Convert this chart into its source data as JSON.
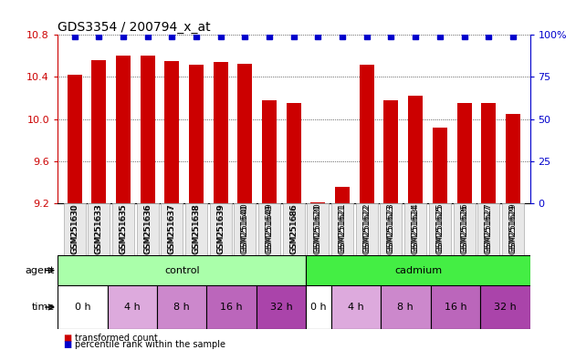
{
  "title": "GDS3354 / 200794_x_at",
  "samples": [
    "GSM251630",
    "GSM251633",
    "GSM251635",
    "GSM251636",
    "GSM251637",
    "GSM251638",
    "GSM251639",
    "GSM251640",
    "GSM251649",
    "GSM251686",
    "GSM251620",
    "GSM251621",
    "GSM251622",
    "GSM251623",
    "GSM251624",
    "GSM251625",
    "GSM251626",
    "GSM251627",
    "GSM251629"
  ],
  "bar_values": [
    10.42,
    10.56,
    10.6,
    10.6,
    10.55,
    10.52,
    10.54,
    10.53,
    10.18,
    10.15,
    9.21,
    9.35,
    10.52,
    10.18,
    10.22,
    9.92,
    10.15,
    10.15,
    10.05
  ],
  "bar_color": "#cc0000",
  "percentile_color": "#0000cc",
  "ymin": 9.2,
  "ymax": 10.8,
  "yticks": [
    9.2,
    9.6,
    10.0,
    10.4,
    10.8
  ],
  "yright_ticks": [
    0,
    25,
    50,
    75,
    100
  ],
  "agent_control_label": "control",
  "agent_cadmium_label": "cadmium",
  "agent_row_label": "agent",
  "time_row_label": "time",
  "control_color": "#aaffaa",
  "cadmium_color": "#44ee44",
  "ctrl_time_widths": [
    2,
    2,
    2,
    2,
    2
  ],
  "cad_time_widths": [
    1,
    2,
    2,
    2,
    2
  ],
  "time_colors": [
    "#ffffff",
    "#ddaadd",
    "#cc88cc",
    "#bb66bb",
    "#aa44aa"
  ],
  "time_labels_control": [
    "0 h",
    "4 h",
    "8 h",
    "16 h",
    "32 h"
  ],
  "time_labels_cadmium": [
    "0 h",
    "4 h",
    "8 h",
    "16 h",
    "32 h"
  ],
  "control_sample_count": 10,
  "cadmium_sample_count": 9,
  "legend_bar_label": "transformed count",
  "legend_dot_label": "percentile rank within the sample",
  "background_color": "#ffffff"
}
